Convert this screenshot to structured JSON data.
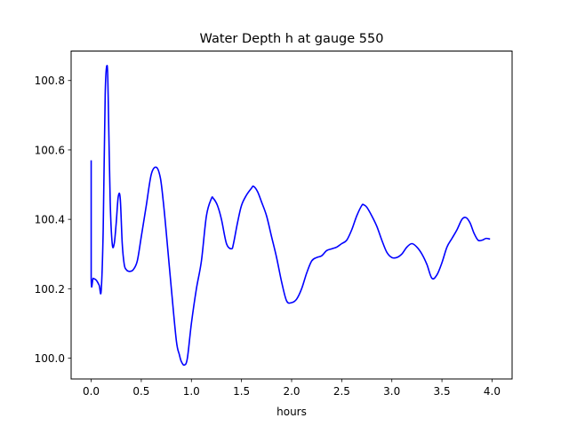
{
  "chart_data": {
    "type": "line",
    "title": "Water Depth h at gauge 550",
    "xlabel": "hours",
    "ylabel": "",
    "xlim": [
      -0.2,
      4.2
    ],
    "ylim": [
      99.94,
      100.885
    ],
    "grid": false,
    "x_ticks": [
      0.0,
      0.5,
      1.0,
      1.5,
      2.0,
      2.5,
      3.0,
      3.5,
      4.0
    ],
    "x_tick_labels": [
      "0.0",
      "0.5",
      "1.0",
      "1.5",
      "2.0",
      "2.5",
      "3.0",
      "3.5",
      "4.0"
    ],
    "y_ticks": [
      100.0,
      100.2,
      100.4,
      100.6,
      100.8
    ],
    "y_tick_labels": [
      "100.0",
      "100.2",
      "100.4",
      "100.6",
      "100.8"
    ],
    "series": [
      {
        "color": "#0000ff",
        "x": [
          0.0,
          0.0,
          0.02,
          0.05,
          0.08,
          0.1,
          0.12,
          0.14,
          0.16,
          0.17,
          0.19,
          0.21,
          0.23,
          0.25,
          0.27,
          0.29,
          0.31,
          0.33,
          0.35,
          0.38,
          0.42,
          0.46,
          0.5,
          0.55,
          0.6,
          0.65,
          0.69,
          0.72,
          0.75,
          0.8,
          0.85,
          0.88,
          0.9,
          0.93,
          0.96,
          1.0,
          1.05,
          1.1,
          1.15,
          1.2,
          1.22,
          1.26,
          1.3,
          1.35,
          1.4,
          1.42,
          1.46,
          1.5,
          1.55,
          1.6,
          1.62,
          1.66,
          1.7,
          1.75,
          1.8,
          1.85,
          1.9,
          1.95,
          2.0,
          2.05,
          2.1,
          2.15,
          2.2,
          2.25,
          2.3,
          2.35,
          2.4,
          2.45,
          2.5,
          2.55,
          2.6,
          2.65,
          2.7,
          2.72,
          2.75,
          2.8,
          2.85,
          2.9,
          2.95,
          3.0,
          3.05,
          3.1,
          3.15,
          3.2,
          3.25,
          3.3,
          3.35,
          3.4,
          3.45,
          3.5,
          3.55,
          3.6,
          3.65,
          3.7,
          3.74,
          3.78,
          3.82,
          3.86,
          3.9,
          3.94,
          3.98
        ],
        "y": [
          100.57,
          100.23,
          100.23,
          100.225,
          100.21,
          100.195,
          100.37,
          100.76,
          100.843,
          100.75,
          100.45,
          100.33,
          100.33,
          100.39,
          100.465,
          100.46,
          100.33,
          100.27,
          100.255,
          100.25,
          100.255,
          100.28,
          100.35,
          100.44,
          100.53,
          100.55,
          100.52,
          100.45,
          100.36,
          100.2,
          100.05,
          100.01,
          99.99,
          99.98,
          100.0,
          100.1,
          100.2,
          100.28,
          100.41,
          100.46,
          100.46,
          100.44,
          100.4,
          100.33,
          100.315,
          100.33,
          100.39,
          100.44,
          100.47,
          100.49,
          100.495,
          100.48,
          100.45,
          100.41,
          100.35,
          100.29,
          100.22,
          100.165,
          100.16,
          100.17,
          100.2,
          100.245,
          100.28,
          100.29,
          100.295,
          100.31,
          100.315,
          100.32,
          100.33,
          100.34,
          100.37,
          100.41,
          100.44,
          100.442,
          100.435,
          100.41,
          100.38,
          100.34,
          100.305,
          100.29,
          100.29,
          100.3,
          100.32,
          100.33,
          100.32,
          100.3,
          100.27,
          100.23,
          100.24,
          100.275,
          100.32,
          100.345,
          100.37,
          100.4,
          100.405,
          100.39,
          100.36,
          100.34,
          100.34,
          100.345,
          100.343
        ]
      }
    ]
  }
}
